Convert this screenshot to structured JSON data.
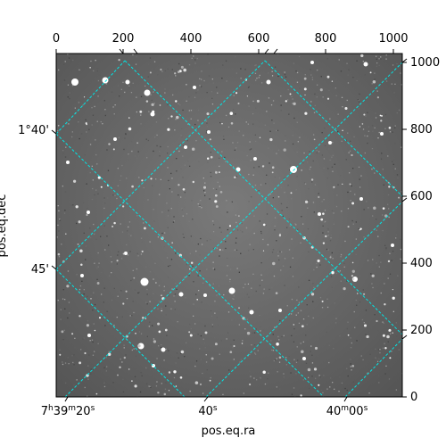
{
  "image": {
    "description_free": true,
    "background_colormap": "gray",
    "grid_color": "#00e5e5"
  },
  "axes": {
    "xlabel": "pos.eq.ra",
    "ylabel": "pos.eq.dec",
    "pixel_x_ticks": [
      "0",
      "200",
      "400",
      "600",
      "800",
      "1000"
    ],
    "pixel_y_ticks": [
      "0",
      "200",
      "400",
      "600",
      "800",
      "1000"
    ],
    "ra_ticks": [
      {
        "hms": [
          "7",
          "h",
          "39",
          "m",
          "20",
          "s"
        ]
      },
      {
        "hms": [
          "",
          "",
          "",
          "",
          "40",
          "s"
        ]
      },
      {
        "hms": [
          "",
          "",
          "40",
          "m",
          "00",
          "s"
        ]
      }
    ],
    "dec_ticks": [
      "1°40'",
      "45'"
    ]
  }
}
